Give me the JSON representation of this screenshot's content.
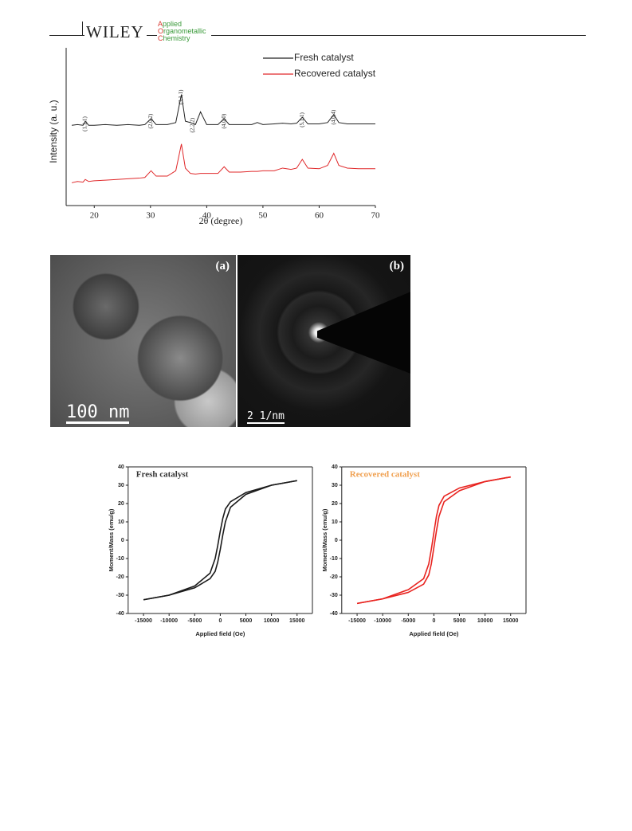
{
  "header": {
    "publisher": "WILEY",
    "journal": [
      "Applied",
      "Organometallic",
      "Chemistry"
    ]
  },
  "chart_data": [
    {
      "type": "line",
      "xlabel": "2θ (degree)",
      "ylabel": "Intensity (a. u.)",
      "xlim": [
        15,
        70
      ],
      "xticks": [
        20,
        30,
        40,
        50,
        60,
        70
      ],
      "ylim": [
        0,
        100
      ],
      "legend": "upper right",
      "x": [
        16,
        17,
        18,
        18.4,
        19,
        20,
        22,
        24,
        26,
        28,
        29,
        30.1,
        31,
        33,
        34.5,
        35.5,
        36.2,
        37.1,
        38,
        38.9,
        40,
        42,
        43.1,
        44,
        46,
        48,
        49,
        50,
        52,
        53.5,
        55,
        56,
        57,
        58,
        60,
        61.5,
        62.6,
        63.5,
        65,
        67,
        70
      ],
      "series": [
        {
          "name": "Fresh catalyst",
          "color": "#222222",
          "values": [
            60,
            60.5,
            60,
            63,
            60,
            60,
            60.5,
            60,
            60.5,
            60,
            60.5,
            65,
            60.5,
            60.5,
            62,
            83,
            63,
            62,
            60.5,
            70,
            60.5,
            60.5,
            65,
            60.5,
            60.5,
            60.5,
            62,
            60.5,
            61,
            61.5,
            61,
            61.5,
            66,
            61,
            61,
            62,
            68,
            62,
            61,
            61,
            61
          ]
        },
        {
          "name": "Recovered catalyst",
          "color": "#e0282a",
          "values": [
            17,
            18,
            17.5,
            19.5,
            18,
            18.5,
            19,
            19.5,
            20,
            20.5,
            21,
            26,
            22,
            22,
            26,
            46,
            28,
            24,
            23.5,
            24,
            24,
            24,
            29,
            25,
            25,
            25.5,
            25.5,
            26,
            26,
            28,
            27,
            28,
            34.5,
            28,
            27.5,
            30,
            39,
            30,
            28,
            27.5,
            27.5
          ]
        }
      ],
      "annotations": [
        {
          "text": "(1,1,1)",
          "x": 18.4
        },
        {
          "text": "(2,0,2)",
          "x": 30.1
        },
        {
          "text": "(3,1,1)",
          "x": 35.5
        },
        {
          "text": "(2,2,2)",
          "x": 37.5
        },
        {
          "text": "(4,0,0)",
          "x": 43.1
        },
        {
          "text": "(5,1,1)",
          "x": 57
        },
        {
          "text": "(4,0,4)",
          "x": 62.6
        }
      ]
    },
    {
      "type": "line",
      "title": "Fresh catalyst",
      "title_color": "#333333",
      "xlabel": "Applied field (Oe)",
      "ylabel": "Moment/Mass (emu/g)",
      "xlim": [
        -18000,
        18000
      ],
      "xticks": [
        -15000,
        -10000,
        -5000,
        0,
        5000,
        10000,
        15000
      ],
      "ylim": [
        -40,
        40
      ],
      "yticks": [
        -40,
        -30,
        -20,
        -10,
        0,
        10,
        20,
        30,
        40
      ],
      "x": [
        -15000,
        -10000,
        -5000,
        -2000,
        -1000,
        -500,
        0,
        500,
        1000,
        2000,
        5000,
        10000,
        15000
      ],
      "series": [
        {
          "color": "#1a1a1a",
          "values": [
            -32.5,
            -30,
            -25,
            -18,
            -10,
            -3,
            5,
            12,
            17,
            21,
            26,
            30,
            32.5
          ]
        },
        {
          "color": "#1a1a1a",
          "values": [
            -32.5,
            -30,
            -26,
            -21,
            -17,
            -12,
            -5,
            3,
            10,
            18,
            25,
            30,
            32.5
          ]
        }
      ]
    },
    {
      "type": "line",
      "title": "Recovered catalyst",
      "title_color": "#f0a050",
      "xlabel": "Applied field (Oe)",
      "ylabel": "Moment/Mass (emu/g)",
      "xlim": [
        -18000,
        18000
      ],
      "xticks": [
        -15000,
        -10000,
        -5000,
        0,
        5000,
        10000,
        15000
      ],
      "ylim": [
        -40,
        40
      ],
      "yticks": [
        -40,
        -30,
        -20,
        -10,
        0,
        10,
        20,
        30,
        40
      ],
      "x": [
        -15000,
        -10000,
        -5000,
        -2000,
        -1000,
        -500,
        0,
        500,
        1000,
        2000,
        5000,
        10000,
        15000
      ],
      "series": [
        {
          "color": "#e8231f",
          "values": [
            -34.5,
            -32,
            -27,
            -21,
            -13,
            -5,
            4,
            13,
            19,
            24,
            28.5,
            32,
            34.5
          ]
        },
        {
          "color": "#e8231f",
          "values": [
            -34.5,
            -32,
            -28.5,
            -24,
            -19,
            -13,
            -4,
            5,
            13,
            21,
            27,
            32,
            34.5
          ]
        }
      ]
    }
  ],
  "images": {
    "a": {
      "label": "(a)",
      "scale": "100 nm"
    },
    "b": {
      "label": "(b)",
      "scale": "2 1/nm"
    }
  }
}
